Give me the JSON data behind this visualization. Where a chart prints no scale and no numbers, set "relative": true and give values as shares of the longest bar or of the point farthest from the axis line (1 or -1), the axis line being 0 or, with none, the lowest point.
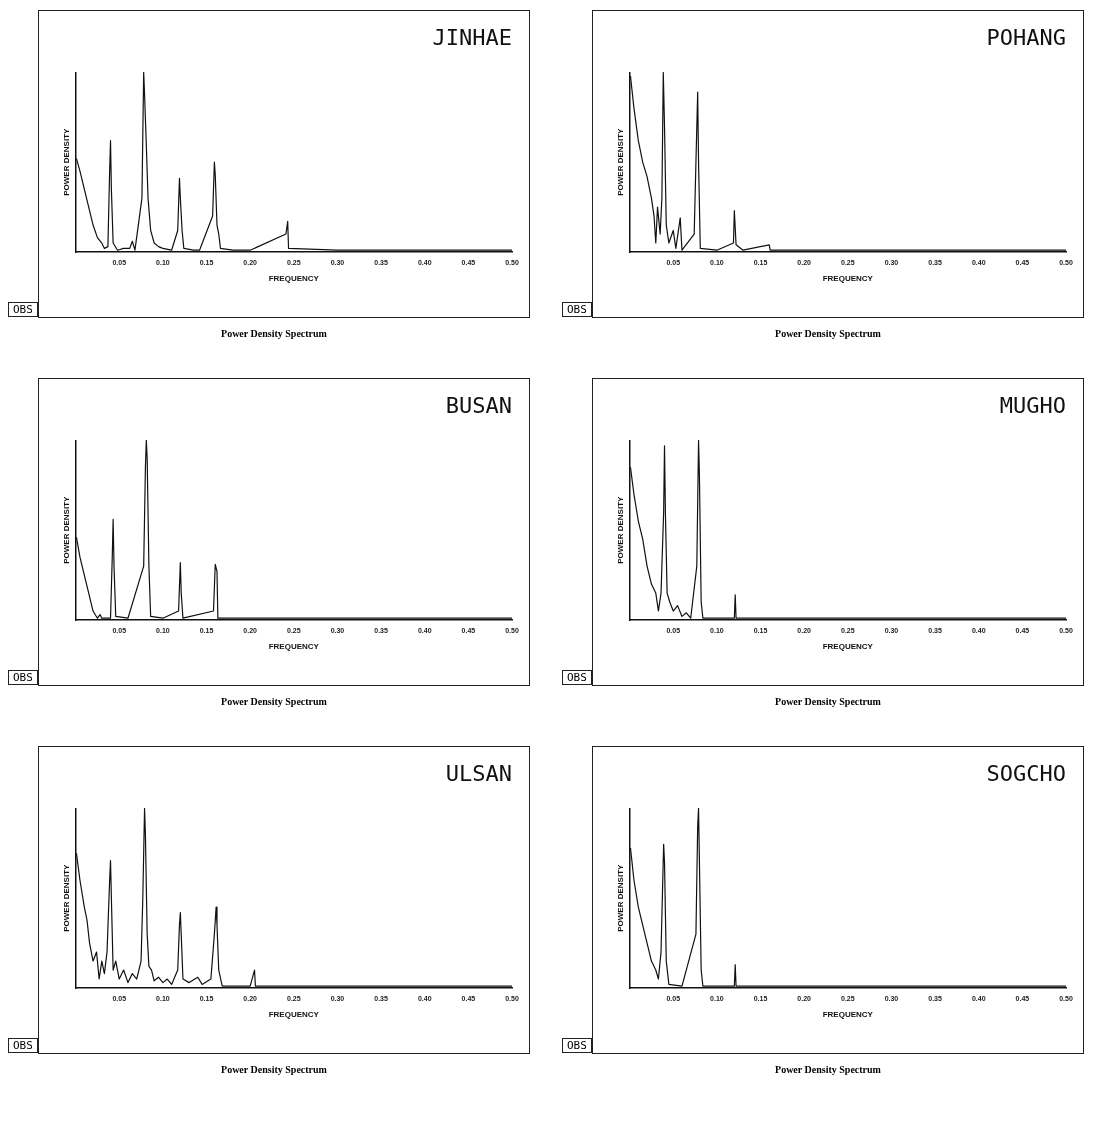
{
  "chart_data": [
    {
      "type": "line",
      "title": "JINHAE",
      "xlabel": "FREQUENCY",
      "ylabel": "POWER DENSITY",
      "relative": true,
      "marker": "none",
      "line_style": "solid",
      "grid": false,
      "legend": false,
      "annotations": [
        "OBS",
        "Power Density Spectrum"
      ],
      "xlim": [
        0,
        0.5
      ],
      "xticks": [
        {
          "value": 0.05,
          "label": "0.05"
        },
        {
          "value": 0.1,
          "label": "0.10"
        },
        {
          "value": 0.15,
          "label": "0.15"
        },
        {
          "value": 0.2,
          "label": "0.20"
        },
        {
          "value": 0.25,
          "label": "0.25"
        },
        {
          "value": 0.3,
          "label": "0.30"
        },
        {
          "value": 0.35,
          "label": "0.35"
        },
        {
          "value": 0.4,
          "label": "0.40"
        },
        {
          "value": 0.45,
          "label": "0.45"
        },
        {
          "value": 0.5,
          "label": "0.50"
        }
      ],
      "series": [
        {
          "color": "#111111",
          "x": [
            0.001,
            0.005,
            0.01,
            0.015,
            0.02,
            0.025,
            0.03,
            0.033,
            0.037,
            0.039,
            0.04,
            0.041,
            0.043,
            0.048,
            0.055,
            0.062,
            0.065,
            0.068,
            0.076,
            0.078,
            0.079,
            0.081,
            0.083,
            0.086,
            0.09,
            0.095,
            0.1,
            0.11,
            0.117,
            0.119,
            0.12,
            0.122,
            0.124,
            0.135,
            0.142,
            0.157,
            0.159,
            0.16,
            0.162,
            0.164,
            0.166,
            0.18,
            0.2,
            0.241,
            0.243,
            0.244,
            0.3,
            0.4,
            0.5
          ],
          "values": [
            0.52,
            0.45,
            0.35,
            0.25,
            0.15,
            0.08,
            0.05,
            0.02,
            0.03,
            0.45,
            0.62,
            0.35,
            0.05,
            0.01,
            0.02,
            0.02,
            0.06,
            0.01,
            0.3,
            1,
            0.88,
            0.6,
            0.3,
            0.12,
            0.05,
            0.03,
            0.02,
            0.01,
            0.12,
            0.41,
            0.3,
            0.12,
            0.02,
            0.01,
            0.01,
            0.2,
            0.5,
            0.43,
            0.15,
            0.1,
            0.02,
            0.01,
            0.01,
            0.1,
            0.17,
            0.02,
            0.01,
            0.01,
            0.01
          ]
        }
      ]
    },
    {
      "type": "line",
      "title": "POHANG",
      "xlabel": "FREQUENCY",
      "ylabel": "POWER DENSITY",
      "relative": true,
      "marker": "none",
      "line_style": "solid",
      "grid": false,
      "legend": false,
      "annotations": [
        "OBS",
        "Power Density Spectrum"
      ],
      "xlim": [
        0,
        0.5
      ],
      "xticks": [
        {
          "value": 0.05,
          "label": "0.05"
        },
        {
          "value": 0.1,
          "label": "0.10"
        },
        {
          "value": 0.15,
          "label": "0.15"
        },
        {
          "value": 0.2,
          "label": "0.20"
        },
        {
          "value": 0.25,
          "label": "0.25"
        },
        {
          "value": 0.3,
          "label": "0.30"
        },
        {
          "value": 0.35,
          "label": "0.35"
        },
        {
          "value": 0.4,
          "label": "0.40"
        },
        {
          "value": 0.45,
          "label": "0.45"
        },
        {
          "value": 0.5,
          "label": "0.50"
        }
      ],
      "series": [
        {
          "color": "#111111",
          "x": [
            0.001,
            0.005,
            0.01,
            0.015,
            0.02,
            0.025,
            0.028,
            0.03,
            0.032,
            0.035,
            0.037,
            0.0386,
            0.04,
            0.042,
            0.045,
            0.05,
            0.053,
            0.058,
            0.06,
            0.074,
            0.076,
            0.078,
            0.079,
            0.081,
            0.1,
            0.119,
            0.12,
            0.122,
            0.13,
            0.16,
            0.161,
            0.3,
            0.5
          ],
          "values": [
            0.98,
            0.8,
            0.62,
            0.5,
            0.42,
            0.3,
            0.2,
            0.05,
            0.25,
            0.1,
            0.3,
            1,
            0.7,
            0.15,
            0.05,
            0.12,
            0.02,
            0.19,
            0.01,
            0.1,
            0.5,
            0.89,
            0.5,
            0.02,
            0.01,
            0.05,
            0.23,
            0.04,
            0.01,
            0.04,
            0.01,
            0.01,
            0.01
          ]
        }
      ]
    },
    {
      "type": "line",
      "title": "BUSAN",
      "xlabel": "FREQUENCY",
      "ylabel": "POWER DENSITY",
      "relative": true,
      "marker": "none",
      "line_style": "solid",
      "grid": false,
      "legend": false,
      "annotations": [
        "OBS",
        "Power Density Spectrum"
      ],
      "xlim": [
        0,
        0.5
      ],
      "xticks": [
        {
          "value": 0.05,
          "label": "0.05"
        },
        {
          "value": 0.1,
          "label": "0.10"
        },
        {
          "value": 0.15,
          "label": "0.15"
        },
        {
          "value": 0.2,
          "label": "0.20"
        },
        {
          "value": 0.25,
          "label": "0.25"
        },
        {
          "value": 0.3,
          "label": "0.30"
        },
        {
          "value": 0.35,
          "label": "0.35"
        },
        {
          "value": 0.4,
          "label": "0.40"
        },
        {
          "value": 0.45,
          "label": "0.45"
        },
        {
          "value": 0.5,
          "label": "0.50"
        }
      ],
      "series": [
        {
          "color": "#111111",
          "x": [
            0.001,
            0.005,
            0.01,
            0.015,
            0.02,
            0.025,
            0.028,
            0.03,
            0.04,
            0.042,
            0.043,
            0.044,
            0.046,
            0.06,
            0.078,
            0.08,
            0.081,
            0.082,
            0.084,
            0.086,
            0.1,
            0.118,
            0.12,
            0.121,
            0.123,
            0.158,
            0.16,
            0.162,
            0.163,
            0.3,
            0.5
          ],
          "values": [
            0.46,
            0.35,
            0.25,
            0.15,
            0.05,
            0.01,
            0.03,
            0.01,
            0.01,
            0.35,
            0.56,
            0.3,
            0.02,
            0.01,
            0.3,
            0.85,
            1,
            0.9,
            0.3,
            0.02,
            0.01,
            0.05,
            0.32,
            0.15,
            0.01,
            0.05,
            0.31,
            0.27,
            0.01,
            0.01,
            0.01
          ]
        }
      ]
    },
    {
      "type": "line",
      "title": "MUGHO",
      "xlabel": "FREQUENCY",
      "ylabel": "POWER DENSITY",
      "relative": true,
      "marker": "none",
      "line_style": "solid",
      "grid": false,
      "legend": false,
      "annotations": [
        "OBS",
        "Power Density Spectrum"
      ],
      "xlim": [
        0,
        0.5
      ],
      "xticks": [
        {
          "value": 0.05,
          "label": "0.05"
        },
        {
          "value": 0.1,
          "label": "0.10"
        },
        {
          "value": 0.15,
          "label": "0.15"
        },
        {
          "value": 0.2,
          "label": "0.20"
        },
        {
          "value": 0.25,
          "label": "0.25"
        },
        {
          "value": 0.3,
          "label": "0.30"
        },
        {
          "value": 0.35,
          "label": "0.35"
        },
        {
          "value": 0.4,
          "label": "0.40"
        },
        {
          "value": 0.45,
          "label": "0.45"
        },
        {
          "value": 0.5,
          "label": "0.50"
        }
      ],
      "series": [
        {
          "color": "#111111",
          "x": [
            0.001,
            0.005,
            0.01,
            0.015,
            0.02,
            0.025,
            0.03,
            0.033,
            0.036,
            0.039,
            0.04,
            0.041,
            0.043,
            0.046,
            0.05,
            0.055,
            0.06,
            0.065,
            0.07,
            0.077,
            0.079,
            0.08,
            0.082,
            0.084,
            0.12,
            0.121,
            0.122,
            0.3,
            0.5
          ],
          "values": [
            0.85,
            0.7,
            0.55,
            0.45,
            0.3,
            0.2,
            0.15,
            0.05,
            0.15,
            0.6,
            0.97,
            0.6,
            0.15,
            0.1,
            0.05,
            0.08,
            0.02,
            0.04,
            0.01,
            0.3,
            1,
            0.8,
            0.1,
            0.01,
            0.01,
            0.14,
            0.01,
            0.01,
            0.01
          ]
        }
      ]
    },
    {
      "type": "line",
      "title": "ULSAN",
      "xlabel": "FREQUENCY",
      "ylabel": "POWER DENSITY",
      "relative": true,
      "marker": "none",
      "line_style": "solid",
      "grid": false,
      "legend": false,
      "annotations": [
        "OBS",
        "Power Density Spectrum"
      ],
      "xlim": [
        0,
        0.5
      ],
      "xticks": [
        {
          "value": 0.05,
          "label": "0.05"
        },
        {
          "value": 0.1,
          "label": "0.10"
        },
        {
          "value": 0.15,
          "label": "0.15"
        },
        {
          "value": 0.2,
          "label": "0.20"
        },
        {
          "value": 0.25,
          "label": "0.25"
        },
        {
          "value": 0.3,
          "label": "0.30"
        },
        {
          "value": 0.35,
          "label": "0.35"
        },
        {
          "value": 0.4,
          "label": "0.40"
        },
        {
          "value": 0.45,
          "label": "0.45"
        },
        {
          "value": 0.5,
          "label": "0.50"
        }
      ],
      "series": [
        {
          "color": "#111111",
          "x": [
            0.001,
            0.005,
            0.01,
            0.013,
            0.016,
            0.02,
            0.024,
            0.027,
            0.03,
            0.033,
            0.036,
            0.039,
            0.04,
            0.041,
            0.043,
            0.046,
            0.05,
            0.055,
            0.06,
            0.065,
            0.07,
            0.075,
            0.077,
            0.079,
            0.08,
            0.082,
            0.084,
            0.087,
            0.09,
            0.095,
            0.1,
            0.105,
            0.11,
            0.117,
            0.119,
            0.12,
            0.121,
            0.123,
            0.13,
            0.14,
            0.145,
            0.155,
            0.159,
            0.161,
            0.162,
            0.164,
            0.168,
            0.2,
            0.205,
            0.206,
            0.3,
            0.5
          ],
          "values": [
            0.75,
            0.6,
            0.45,
            0.38,
            0.25,
            0.15,
            0.2,
            0.05,
            0.15,
            0.08,
            0.2,
            0.6,
            0.71,
            0.5,
            0.1,
            0.15,
            0.05,
            0.1,
            0.03,
            0.08,
            0.05,
            0.15,
            0.5,
            1,
            0.85,
            0.3,
            0.12,
            0.1,
            0.04,
            0.06,
            0.03,
            0.05,
            0.02,
            0.1,
            0.35,
            0.42,
            0.3,
            0.05,
            0.03,
            0.06,
            0.02,
            0.05,
            0.3,
            0.45,
            0.35,
            0.1,
            0.01,
            0.01,
            0.1,
            0.01,
            0.01,
            0.01
          ]
        }
      ]
    },
    {
      "type": "line",
      "title": "SOGCHO",
      "xlabel": "FREQUENCY",
      "ylabel": "POWER DENSITY",
      "relative": true,
      "marker": "none",
      "line_style": "solid",
      "grid": false,
      "legend": false,
      "annotations": [
        "OBS",
        "Power Density Spectrum"
      ],
      "xlim": [
        0,
        0.5
      ],
      "xticks": [
        {
          "value": 0.05,
          "label": "0.05"
        },
        {
          "value": 0.1,
          "label": "0.10"
        },
        {
          "value": 0.15,
          "label": "0.15"
        },
        {
          "value": 0.2,
          "label": "0.20"
        },
        {
          "value": 0.25,
          "label": "0.25"
        },
        {
          "value": 0.3,
          "label": "0.30"
        },
        {
          "value": 0.35,
          "label": "0.35"
        },
        {
          "value": 0.4,
          "label": "0.40"
        },
        {
          "value": 0.45,
          "label": "0.45"
        },
        {
          "value": 0.5,
          "label": "0.50"
        }
      ],
      "series": [
        {
          "color": "#111111",
          "x": [
            0.001,
            0.005,
            0.01,
            0.015,
            0.02,
            0.025,
            0.03,
            0.033,
            0.036,
            0.039,
            0.04,
            0.042,
            0.045,
            0.06,
            0.076,
            0.078,
            0.079,
            0.08,
            0.082,
            0.084,
            0.12,
            0.121,
            0.122,
            0.3,
            0.5
          ],
          "values": [
            0.78,
            0.6,
            0.45,
            0.35,
            0.25,
            0.15,
            0.1,
            0.05,
            0.2,
            0.8,
            0.7,
            0.15,
            0.02,
            0.01,
            0.3,
            0.9,
            1,
            0.7,
            0.1,
            0.01,
            0.01,
            0.13,
            0.01,
            0.01,
            0.01
          ]
        }
      ]
    }
  ]
}
